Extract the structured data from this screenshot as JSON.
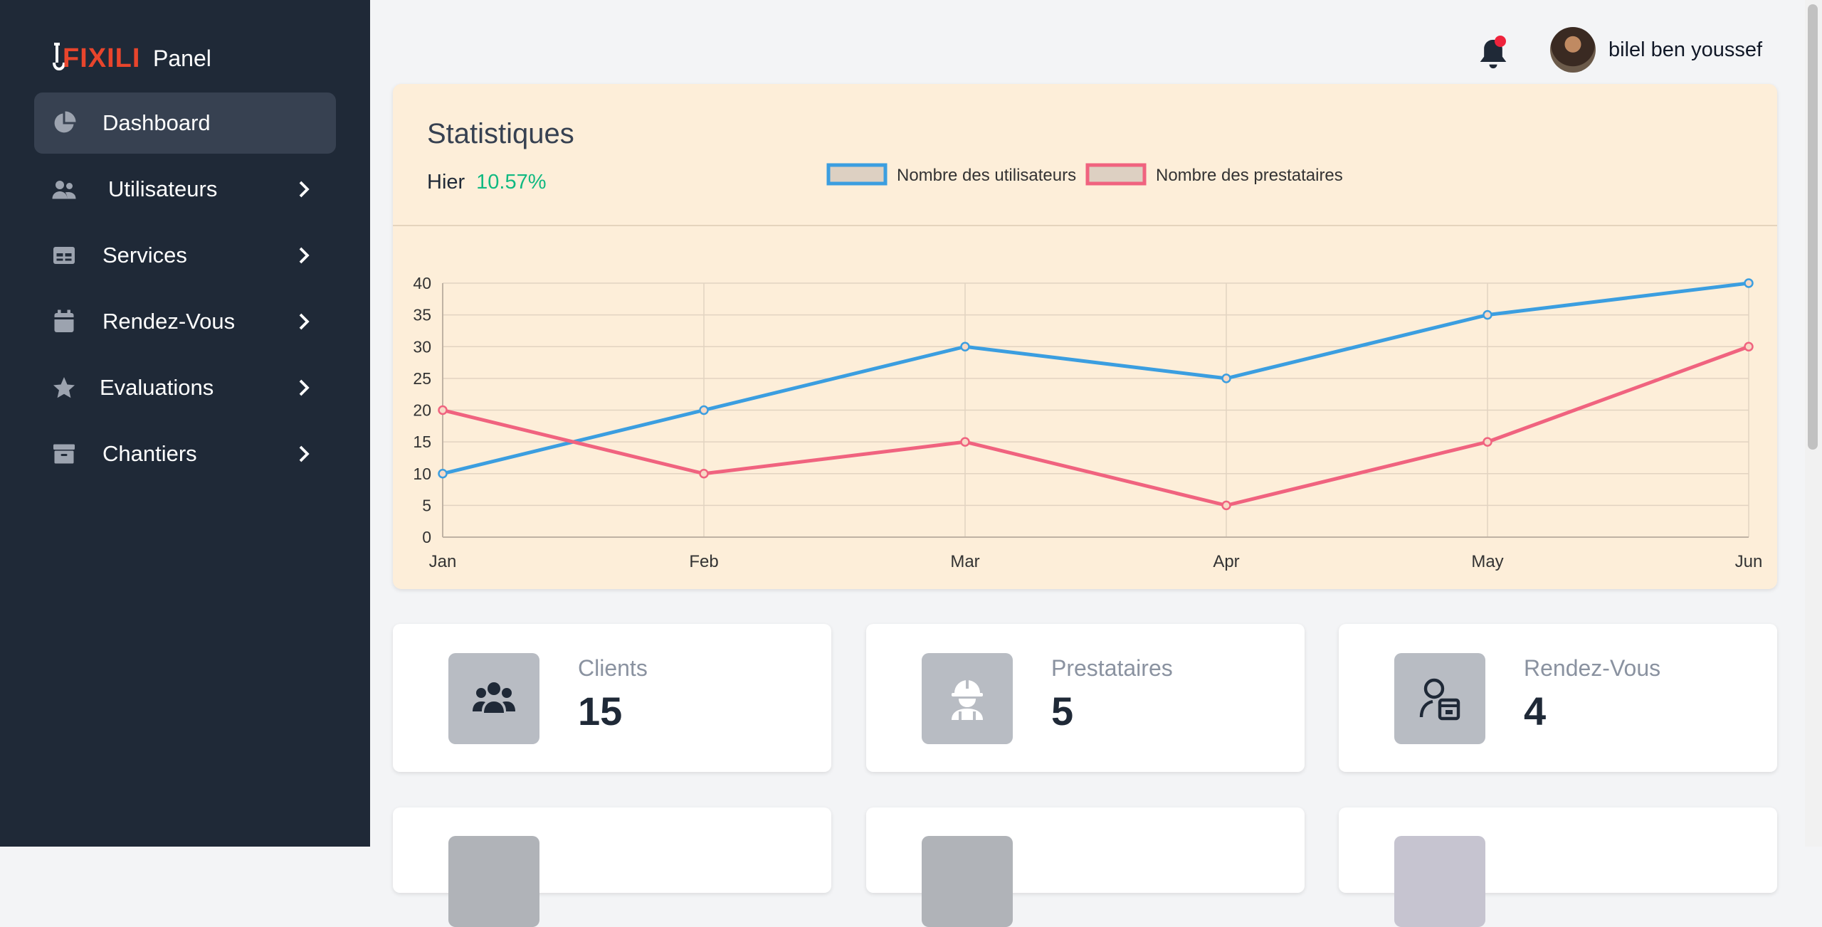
{
  "brand": {
    "logo_text": "FIXILI",
    "panel_label": "Panel",
    "accent": "#e8452c"
  },
  "sidebar": {
    "items": [
      {
        "label": "Dashboard",
        "icon": "pie-chart-icon",
        "active": true
      },
      {
        "label": "Utilisateurs",
        "icon": "users-icon"
      },
      {
        "label": "Services",
        "icon": "table-icon"
      },
      {
        "label": "Rendez-Vous",
        "icon": "calendar-icon"
      },
      {
        "label": "Evaluations",
        "icon": "star-icon"
      },
      {
        "label": "Chantiers",
        "icon": "archive-icon"
      }
    ]
  },
  "header": {
    "username": "bilel ben youssef",
    "notification_icon": "bell-icon"
  },
  "stats": {
    "title": "Statistiques",
    "period_label": "Hier",
    "change": "10.57%"
  },
  "chart_data": {
    "type": "line",
    "categories": [
      "Jan",
      "Feb",
      "Mar",
      "Apr",
      "May",
      "Jun"
    ],
    "series": [
      {
        "name": "Nombre des utilisateurs",
        "values": [
          10,
          20,
          30,
          25,
          35,
          40
        ],
        "color": "#3b9ee0"
      },
      {
        "name": "Nombre des prestataires",
        "values": [
          20,
          10,
          15,
          5,
          15,
          30
        ],
        "color": "#f0637f"
      }
    ],
    "ylim": [
      0,
      40
    ],
    "yticks": [
      0,
      5,
      10,
      15,
      20,
      25,
      30,
      35,
      40
    ],
    "grid": true,
    "legend": "top-center"
  },
  "metrics": [
    {
      "label": "Clients",
      "value": "15",
      "icon": "users-group-icon"
    },
    {
      "label": "Prestataires",
      "value": "5",
      "icon": "worker-helmet-icon"
    },
    {
      "label": "Rendez-Vous",
      "value": "4",
      "icon": "person-calendar-icon"
    }
  ]
}
